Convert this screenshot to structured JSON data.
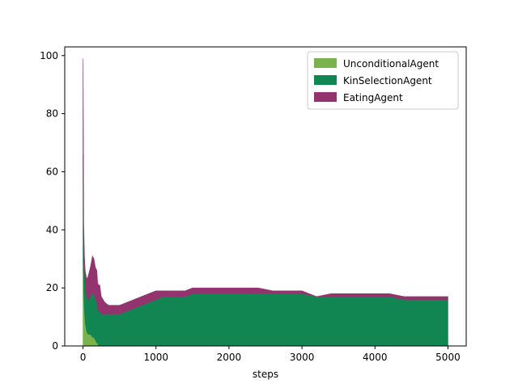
{
  "chart_data": {
    "type": "area",
    "stacked": true,
    "title": "",
    "xlabel": "steps",
    "ylabel": "",
    "xlim": [
      -250,
      5250
    ],
    "ylim": [
      0,
      103
    ],
    "xticks": [
      0,
      1000,
      2000,
      3000,
      4000,
      5000
    ],
    "yticks": [
      0,
      20,
      40,
      60,
      80,
      100
    ],
    "grid": false,
    "legend_position": "top-right",
    "series": [
      {
        "name": "UnconditionalAgent",
        "color": "#7ab24e",
        "x": [
          0,
          5,
          10,
          20,
          30,
          50,
          70,
          100,
          130,
          150,
          170,
          190,
          200,
          210,
          230,
          5000
        ],
        "values": [
          30,
          25,
          18,
          12,
          8,
          5,
          4,
          4,
          3,
          3,
          2,
          1,
          1,
          0,
          0,
          0
        ]
      },
      {
        "name": "KinSelectionAgent",
        "color": "#118653",
        "x": [
          0,
          5,
          10,
          20,
          30,
          50,
          70,
          100,
          130,
          150,
          170,
          200,
          250,
          300,
          350,
          400,
          500,
          600,
          700,
          800,
          900,
          1000,
          1100,
          1200,
          1400,
          1500,
          1600,
          1800,
          2000,
          2200,
          2400,
          2600,
          2800,
          3000,
          3200,
          3400,
          3600,
          3800,
          4000,
          4200,
          4400,
          4600,
          4800,
          5000
        ],
        "values": [
          36,
          11,
          15,
          15,
          14,
          12,
          12,
          13,
          15,
          15,
          14,
          12,
          11,
          11,
          11,
          11,
          11,
          12,
          13,
          14,
          15,
          16,
          17,
          17,
          17,
          18,
          18,
          18,
          18,
          18,
          18,
          18,
          18,
          18,
          17,
          17,
          17,
          17,
          17,
          17,
          16,
          16,
          16,
          16
        ]
      },
      {
        "name": "EatingAgent",
        "color": "#93346e",
        "x": [
          0,
          5,
          10,
          20,
          30,
          50,
          70,
          100,
          130,
          150,
          170,
          200,
          250,
          300,
          350,
          400,
          500,
          600,
          700,
          800,
          900,
          1000,
          1100,
          1200,
          1400,
          1500,
          1600,
          1800,
          2000,
          2200,
          2400,
          2600,
          2800,
          3000,
          3200,
          3400,
          3600,
          3800,
          4000,
          4200,
          4400,
          4600,
          4800,
          5000
        ],
        "values": [
          33,
          45,
          9,
          4,
          4,
          6,
          8,
          10,
          13,
          12,
          11,
          9,
          6,
          4,
          3,
          3,
          3,
          3,
          3,
          3,
          3,
          3,
          2,
          2,
          2,
          2,
          2,
          2,
          2,
          2,
          2,
          1,
          1,
          1,
          0,
          1,
          1,
          1,
          1,
          1,
          1,
          1,
          1,
          1
        ]
      }
    ]
  }
}
